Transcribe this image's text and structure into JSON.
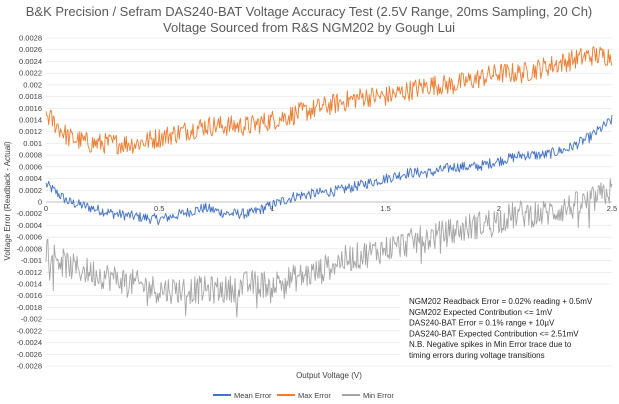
{
  "chart_data": {
    "type": "line",
    "title": "B&K Precision / Sefram DAS240-BAT Voltage Accuracy Test (2.5V Range, 20ms Sampling, 20 Ch)",
    "subtitle": "Voltage Sourced from R&S NGM202 by Gough Lui",
    "xlabel": "Output Voltage (V)",
    "ylabel": "Voltage Error (Readback - Actual)",
    "xlim": [
      0,
      2.5
    ],
    "ylim": [
      -0.0028,
      0.0028
    ],
    "x_ticks": [
      0,
      0.5,
      1,
      1.5,
      2,
      2.5
    ],
    "x_tick_labels": [
      "0",
      "0.5",
      "1",
      "1.5",
      "2",
      "2.5"
    ],
    "y_ticks": [
      0.0028,
      0.0026,
      0.0024,
      0.0022,
      0.002,
      0.0018,
      0.0016,
      0.0014,
      0.0012,
      0.001,
      0.0008,
      0.0006,
      0.0004,
      0.0002,
      0,
      -0.0002,
      -0.0004,
      -0.0006,
      -0.0008,
      -0.001,
      -0.0012,
      -0.0014,
      -0.0016,
      -0.0018,
      -0.002,
      -0.0022,
      -0.0024,
      -0.0026,
      -0.0028
    ],
    "y_tick_labels": [
      "0.0028",
      "0.0026",
      "0.0024",
      "0.0022",
      "0.002",
      "0.0018",
      "0.0016",
      "0.0014",
      "0.0012",
      "0.001",
      "0.0008",
      "0.0006",
      "0.0004",
      "0.0002",
      "0",
      "-0.0002",
      "-0.0004",
      "-0.0006",
      "-0.0008",
      "-0.001",
      "-0.0012",
      "-0.0014",
      "-0.0016",
      "-0.0018",
      "-0.002",
      "-0.0022",
      "-0.0024",
      "-0.0026",
      "-0.0028"
    ],
    "grid": "horizontal",
    "legend_position": "bottom",
    "series": [
      {
        "name": "Mean Error",
        "color": "#4472C4",
        "x": [
          0,
          0.1,
          0.2,
          0.3,
          0.4,
          0.5,
          0.6,
          0.7,
          0.8,
          0.9,
          1.0,
          1.1,
          1.2,
          1.3,
          1.4,
          1.5,
          1.6,
          1.7,
          1.8,
          1.9,
          2.0,
          2.1,
          2.2,
          2.3,
          2.4,
          2.5
        ],
        "y": [
          0.0003,
          0.0,
          -0.0001,
          -0.0002,
          -0.00025,
          -0.0003,
          -0.0002,
          -0.0001,
          -0.0002,
          -0.0002,
          -5e-05,
          0.0001,
          0.00015,
          0.0002,
          0.0003,
          0.0004,
          0.0005,
          0.0005,
          0.0006,
          0.0006,
          0.0007,
          0.0008,
          0.0008,
          0.0009,
          0.0011,
          0.0014
        ]
      },
      {
        "name": "Max Error",
        "color": "#ED7D31",
        "x": [
          0,
          0.1,
          0.2,
          0.3,
          0.4,
          0.5,
          0.6,
          0.7,
          0.8,
          0.9,
          1.0,
          1.1,
          1.2,
          1.3,
          1.4,
          1.5,
          1.6,
          1.7,
          1.8,
          1.9,
          2.0,
          2.1,
          2.2,
          2.3,
          2.4,
          2.5
        ],
        "y": [
          0.0015,
          0.0011,
          0.001,
          0.001,
          0.001,
          0.0011,
          0.0012,
          0.0013,
          0.0013,
          0.0013,
          0.0014,
          0.0015,
          0.0016,
          0.0017,
          0.0018,
          0.0018,
          0.0019,
          0.002,
          0.002,
          0.0021,
          0.0022,
          0.0022,
          0.0023,
          0.0024,
          0.0025,
          0.0025
        ]
      },
      {
        "name": "Min Error",
        "color": "#A5A5A5",
        "x": [
          0,
          0.1,
          0.2,
          0.3,
          0.4,
          0.5,
          0.6,
          0.7,
          0.8,
          0.9,
          1.0,
          1.1,
          1.2,
          1.3,
          1.4,
          1.5,
          1.6,
          1.7,
          1.8,
          1.9,
          2.0,
          2.1,
          2.2,
          2.3,
          2.4,
          2.5
        ],
        "y": [
          -0.0008,
          -0.0011,
          -0.0012,
          -0.0013,
          -0.0014,
          -0.0015,
          -0.0015,
          -0.0015,
          -0.0015,
          -0.0014,
          -0.0014,
          -0.0013,
          -0.0012,
          -0.001,
          -0.0009,
          -0.0008,
          -0.0007,
          -0.0006,
          -0.0005,
          -0.0004,
          -0.0003,
          -0.0002,
          -0.0002,
          -0.0001,
          0.0,
          0.0002
        ]
      }
    ],
    "annotations": [
      "NGM202 Readback Error = 0.02% reading + 0.5mV",
      "NGM202 Expected Contribution <= 1mV",
      "DAS240-BAT Error = 0.1% range + 10µV",
      "DAS240-BAT Expected Contribution <= 2.51mV",
      "N.B. Negative spikes in Min Error trace due to",
      "timing errors during voltage transitions"
    ]
  }
}
